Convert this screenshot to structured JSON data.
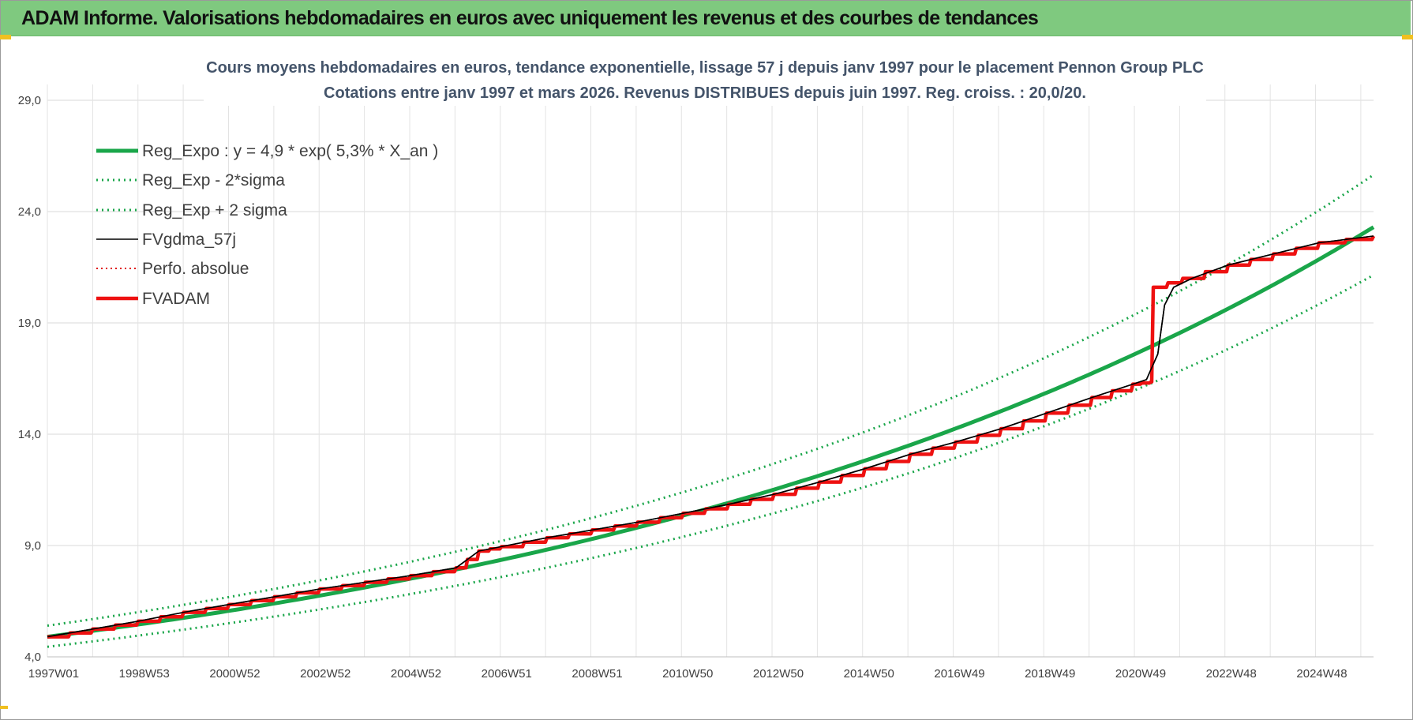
{
  "banner": {
    "title": "ADAM Informe. Valorisations hebdomadaires en euros avec uniquement les revenus et des courbes de tendances"
  },
  "colors": {
    "banner_bg": "#7fc97f",
    "trend": "#1aa64a",
    "fv_smooth": "#000000",
    "perf_abs": "#e01010",
    "fvadam": "#ee1111",
    "grid": "#d9d9d9",
    "title": "#44546a"
  },
  "chart_data": {
    "type": "line",
    "title": "Cours moyens hebdomadaires en euros, tendance exponentielle, lissage 57 j depuis janv 1997  pour le placement Pennon Group PLC",
    "subtitle": "Cotations entre janv 1997 et mars 2026. Revenus DISTRIBUES depuis juin 1997. Reg. croiss. : 20,0/20.",
    "xlabel": "",
    "ylabel": "",
    "ylim": [
      4.0,
      29.0
    ],
    "xlim": [
      1997.0,
      2026.2
    ],
    "y_ticks": [
      "4,0",
      "9,0",
      "14,0",
      "19,0",
      "24,0",
      "29,0"
    ],
    "x_ticks": [
      "1997W01",
      "1998W53",
      "2000W52",
      "2002W52",
      "2004W52",
      "2006W51",
      "2008W51",
      "2010W50",
      "2012W50",
      "2014W50",
      "2016W49",
      "2018W49",
      "2020W49",
      "2022W48",
      "2024W48"
    ],
    "grid": true,
    "legend_position": "top-left",
    "series": [
      {
        "name": "Reg_Expo : y = 4,9 * exp( 5,3% *  X_an )",
        "style": "solid-thick",
        "color": "#1aa64a",
        "x": [
          1997,
          2000,
          2003,
          2006,
          2009,
          2012,
          2015,
          2018,
          2021,
          2024,
          2026.2
        ],
        "values": [
          4.9,
          5.75,
          6.74,
          7.92,
          9.3,
          10.9,
          12.8,
          15.0,
          17.7,
          20.8,
          23.3
        ]
      },
      {
        "name": "Reg_Exp - 2*sigma",
        "style": "dotted",
        "color": "#1aa64a",
        "x": [
          1997,
          2000,
          2003,
          2006,
          2009,
          2012,
          2015,
          2018,
          2021,
          2024,
          2026.2
        ],
        "values": [
          4.45,
          5.2,
          6.1,
          7.15,
          8.4,
          9.85,
          11.55,
          13.55,
          15.95,
          18.75,
          21.15
        ]
      },
      {
        "name": "Reg_Exp + 2 sigma",
        "style": "dotted",
        "color": "#1aa64a",
        "x": [
          1997,
          2000,
          2003,
          2006,
          2009,
          2012,
          2015,
          2018,
          2021,
          2024,
          2026.2
        ],
        "values": [
          5.4,
          6.33,
          7.42,
          8.71,
          10.23,
          12.0,
          14.1,
          16.55,
          19.45,
          22.9,
          25.65
        ]
      },
      {
        "name": "FVgdma_57j",
        "style": "solid-thin",
        "color": "#000000",
        "x": [
          1997.0,
          1998.0,
          1999.0,
          2000.0,
          2001.0,
          2002.0,
          2003.0,
          2004.0,
          2005.0,
          2006.0,
          2006.5,
          2007.0,
          2008.0,
          2009.0,
          2010.0,
          2011.0,
          2012.0,
          2013.0,
          2014.0,
          2015.0,
          2016.0,
          2017.0,
          2018.0,
          2019.0,
          2020.0,
          2020.9,
          2021.2,
          2021.45,
          2021.6,
          2021.8,
          2022.2,
          2023.0,
          2024.0,
          2025.0,
          2026.2
        ],
        "values": [
          4.9,
          5.25,
          5.6,
          6.0,
          6.35,
          6.7,
          7.05,
          7.35,
          7.65,
          8.0,
          8.75,
          8.95,
          9.35,
          9.7,
          10.05,
          10.45,
          10.85,
          11.3,
          11.85,
          12.45,
          13.1,
          13.65,
          14.25,
          14.95,
          15.65,
          16.25,
          16.45,
          17.6,
          19.8,
          20.6,
          21.0,
          21.6,
          22.1,
          22.6,
          22.9
        ]
      },
      {
        "name": "Perfo. absolue",
        "style": "dotted",
        "color": "#e01010",
        "x": [
          1997.0,
          1998.0,
          1999.0,
          2000.0,
          2001.0,
          2002.0,
          2003.0,
          2004.0,
          2005.0,
          2006.0,
          2006.5,
          2007.0,
          2008.0,
          2009.0,
          2010.0,
          2011.0,
          2012.0,
          2013.0,
          2014.0,
          2015.0,
          2016.0,
          2017.0,
          2018.0,
          2019.0,
          2020.0,
          2020.9,
          2021.3,
          2021.35,
          2022.0,
          2023.0,
          2024.0,
          2025.0,
          2026.2
        ],
        "values": [
          4.9,
          5.25,
          5.6,
          6.0,
          6.35,
          6.7,
          7.05,
          7.35,
          7.65,
          8.0,
          8.75,
          8.95,
          9.35,
          9.7,
          10.05,
          10.45,
          10.85,
          11.3,
          11.85,
          12.45,
          13.1,
          13.65,
          14.25,
          14.95,
          15.65,
          16.25,
          16.35,
          20.6,
          21.0,
          21.6,
          22.1,
          22.6,
          22.9
        ]
      },
      {
        "name": "FVADAM",
        "style": "solid-thick",
        "color": "#ee1111",
        "x": [
          1997.0,
          1998.0,
          1999.0,
          2000.0,
          2001.0,
          2002.0,
          2003.0,
          2004.0,
          2005.0,
          2006.0,
          2006.5,
          2007.0,
          2008.0,
          2009.0,
          2010.0,
          2011.0,
          2012.0,
          2013.0,
          2014.0,
          2015.0,
          2016.0,
          2017.0,
          2018.0,
          2019.0,
          2020.0,
          2020.9,
          2021.3,
          2021.35,
          2022.0,
          2023.0,
          2024.0,
          2025.0,
          2026.2
        ],
        "values": [
          4.9,
          5.25,
          5.6,
          6.0,
          6.35,
          6.7,
          7.05,
          7.35,
          7.65,
          8.0,
          8.75,
          8.95,
          9.35,
          9.7,
          10.05,
          10.45,
          10.85,
          11.3,
          11.85,
          12.45,
          13.1,
          13.65,
          14.25,
          14.95,
          15.65,
          16.25,
          16.35,
          20.6,
          21.0,
          21.6,
          22.1,
          22.6,
          22.9
        ]
      }
    ]
  }
}
